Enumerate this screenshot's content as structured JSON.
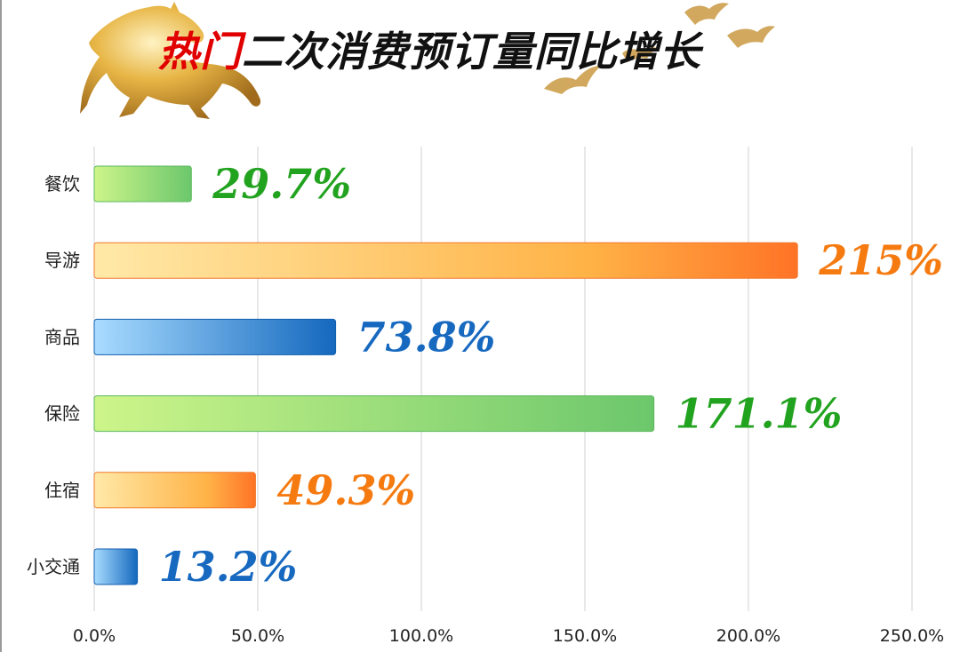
{
  "title": {
    "highlight": "热门",
    "rest": "二次消费预订量同比增长"
  },
  "colors": {
    "title_highlight": "#e10000",
    "green": "#22a31f",
    "orange": "#f57a10",
    "blue": "#1769c0"
  },
  "chart_data": {
    "type": "bar",
    "orientation": "horizontal",
    "title": "热门二次消费预订量同比增长",
    "categories": [
      "餐饮",
      "导游",
      "商品",
      "保险",
      "住宿",
      "小交通"
    ],
    "values": [
      29.7,
      215,
      73.8,
      171.1,
      49.3,
      13.2
    ],
    "data_labels": [
      "29.7%",
      "215%",
      "73.8%",
      "171.1%",
      "49.3%",
      "13.2%"
    ],
    "bar_styles": [
      "green",
      "orange",
      "blue",
      "green",
      "orange",
      "blue"
    ],
    "xlim": [
      0,
      250
    ],
    "x_ticks": [
      0,
      50,
      100,
      150,
      200,
      250
    ],
    "x_tick_labels": [
      "0.0%",
      "50.0%",
      "100.0%",
      "150.0%",
      "200.0%",
      "250.0%"
    ],
    "grid": "vertical",
    "legend": "none",
    "xlabel": "",
    "ylabel": ""
  }
}
